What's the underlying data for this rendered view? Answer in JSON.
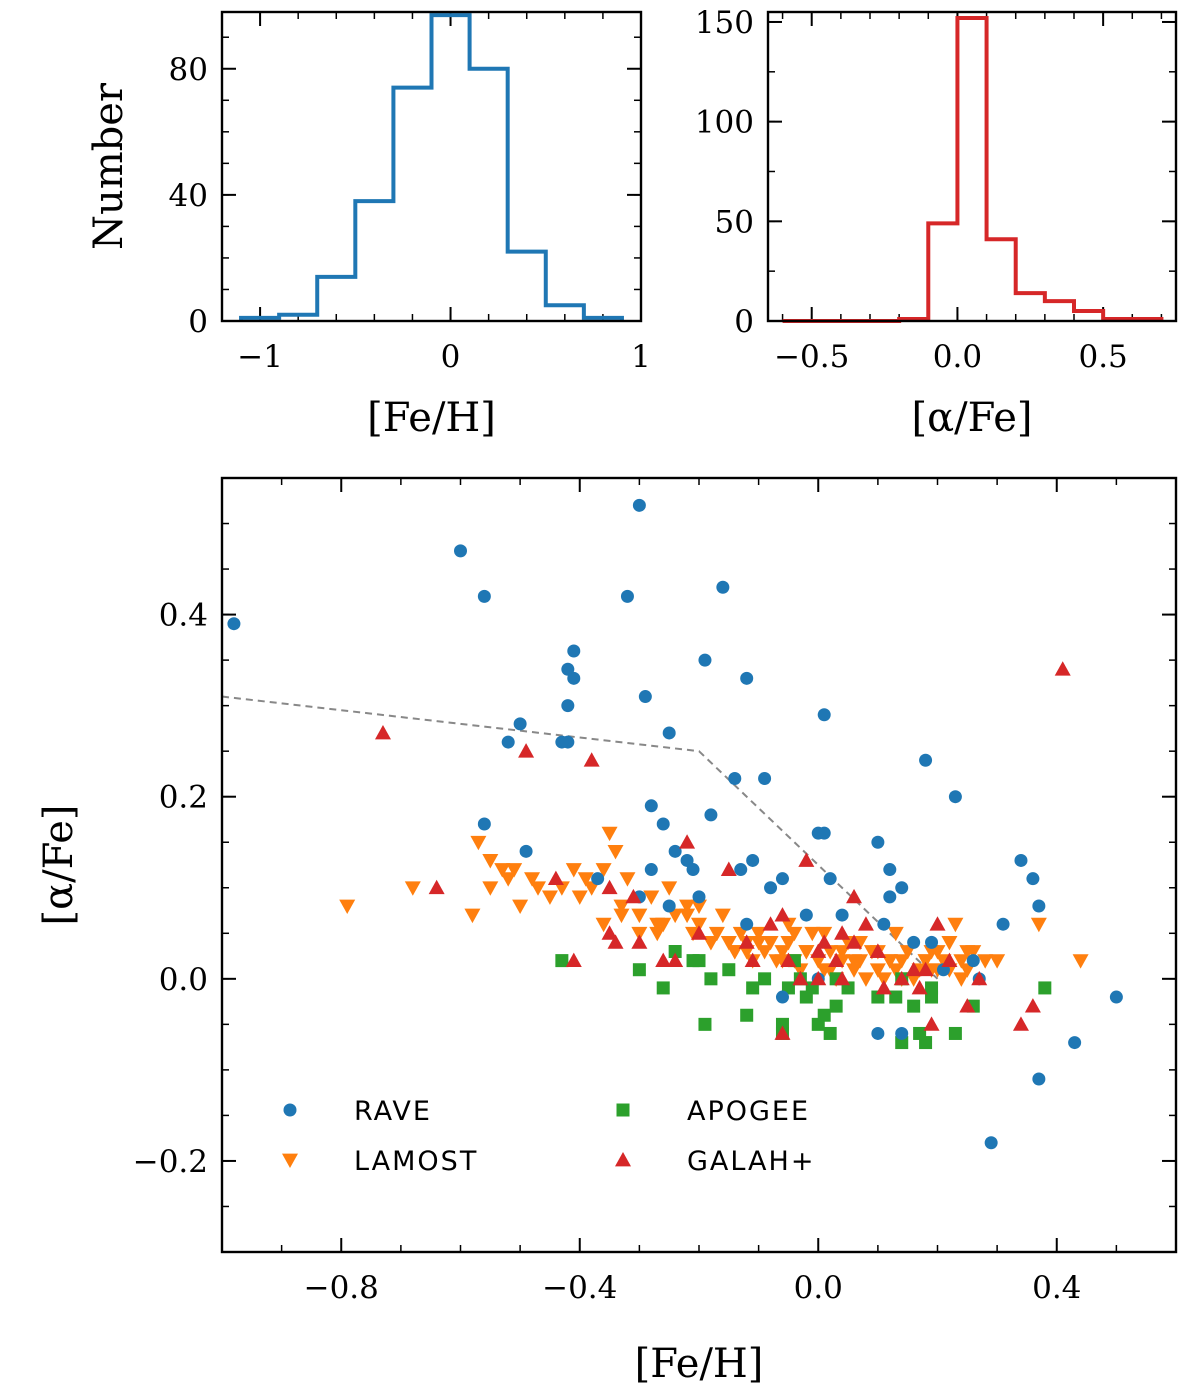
{
  "colors": {
    "rave": "#1f77b4",
    "lamost": "#ff7f0e",
    "apogee": "#2ca02c",
    "galah": "#d62728",
    "divider": "#888888"
  },
  "chart_data": [
    {
      "id": "feh_hist",
      "type": "histogram",
      "title": "",
      "xlabel": "[Fe/H]",
      "ylabel": "Number",
      "xlim": [
        -1.2,
        1.0
      ],
      "ylim": [
        0,
        98
      ],
      "xticks": [
        -1,
        0,
        1
      ],
      "xtick_labels": [
        "−1",
        "0",
        "1"
      ],
      "yticks": [
        0,
        40,
        80
      ],
      "ytick_labels": [
        "0",
        "40",
        "80"
      ],
      "color": "#1f77b4",
      "bin_edges": [
        -1.1,
        -0.9,
        -0.7,
        -0.5,
        -0.3,
        -0.1,
        0.1,
        0.3,
        0.5,
        0.7,
        0.9
      ],
      "counts": [
        1,
        2,
        14,
        38,
        74,
        97,
        80,
        22,
        5,
        1
      ]
    },
    {
      "id": "alpha_hist",
      "type": "histogram",
      "title": "",
      "xlabel": "[α/Fe]",
      "ylabel": "",
      "xlim": [
        -0.65,
        0.75
      ],
      "ylim": [
        0,
        155
      ],
      "xticks": [
        -0.5,
        0.0,
        0.5
      ],
      "xtick_labels": [
        "−0.5",
        "0.0",
        "0.5"
      ],
      "yticks": [
        0,
        50,
        100,
        150
      ],
      "ytick_labels": [
        "0",
        "50",
        "100",
        "150"
      ],
      "color": "#d62728",
      "bin_edges": [
        -0.6,
        -0.5,
        -0.4,
        -0.3,
        -0.2,
        -0.1,
        0.0,
        0.1,
        0.2,
        0.3,
        0.4,
        0.5,
        0.6,
        0.7
      ],
      "counts": [
        0,
        0,
        0,
        0,
        1,
        49,
        152,
        41,
        14,
        10,
        5,
        1,
        1
      ]
    },
    {
      "id": "scatter",
      "type": "scatter",
      "title": "",
      "xlabel": "[Fe/H]",
      "ylabel": "[α/Fe]",
      "xlim": [
        -1.0,
        0.6
      ],
      "ylim": [
        -0.3,
        0.55
      ],
      "xticks": [
        -0.8,
        -0.4,
        0.0,
        0.4
      ],
      "xtick_labels": [
        "−0.8",
        "−0.4",
        "0.0",
        "0.4"
      ],
      "yticks": [
        -0.2,
        0.0,
        0.2,
        0.4
      ],
      "ytick_labels": [
        "−0.2",
        "0.0",
        "0.2",
        "0.4"
      ],
      "legend_position": "lower-left",
      "divider_line": {
        "x": [
          -1.0,
          -0.2,
          0.2
        ],
        "y": [
          0.31,
          0.25,
          0.0
        ]
      },
      "series": [
        {
          "name": "RAVE",
          "marker": "circle",
          "color": "#1f77b4",
          "x": [
            -0.98,
            -0.6,
            -0.56,
            -0.3,
            -0.32,
            -0.29,
            -0.16,
            -0.19,
            -0.12,
            0.01,
            -0.42,
            -0.41,
            -0.41,
            -0.42,
            -0.42,
            -0.5,
            -0.52,
            -0.56,
            -0.49,
            -0.43,
            -0.25,
            -0.14,
            -0.09,
            -0.18,
            -0.28,
            -0.26,
            -0.28,
            -0.24,
            -0.22,
            -0.21,
            -0.2,
            -0.13,
            -0.11,
            -0.08,
            -0.06,
            -0.37,
            -0.3,
            -0.25,
            0.0,
            0.01,
            0.02,
            0.1,
            0.12,
            0.14,
            0.18,
            0.23,
            0.12,
            0.04,
            -0.02,
            0.11,
            0.16,
            0.19,
            0.26,
            0.31,
            0.34,
            0.36,
            0.37,
            0.43,
            0.37,
            0.29,
            0.5,
            0.27,
            0.21,
            0.14,
            0.1,
            0.0,
            -0.06,
            -0.12
          ],
          "y": [
            0.39,
            0.47,
            0.42,
            0.52,
            0.42,
            0.31,
            0.43,
            0.35,
            0.33,
            0.29,
            0.34,
            0.33,
            0.36,
            0.3,
            0.26,
            0.28,
            0.26,
            0.17,
            0.14,
            0.26,
            0.27,
            0.22,
            0.22,
            0.18,
            0.19,
            0.17,
            0.12,
            0.14,
            0.13,
            0.12,
            0.09,
            0.12,
            0.13,
            0.1,
            0.11,
            0.11,
            0.09,
            0.08,
            0.16,
            0.16,
            0.11,
            0.15,
            0.12,
            0.1,
            0.24,
            0.2,
            0.09,
            0.07,
            0.07,
            0.06,
            0.04,
            0.04,
            0.02,
            0.06,
            0.13,
            0.11,
            0.08,
            -0.07,
            -0.11,
            -0.18,
            -0.02,
            0.0,
            0.01,
            -0.06,
            -0.06,
            0.0,
            -0.02,
            0.06
          ]
        },
        {
          "name": "LAMOST",
          "marker": "triangle-down",
          "color": "#ff7f0e",
          "x": [
            -0.79,
            -0.68,
            -0.58,
            -0.57,
            -0.55,
            -0.53,
            -0.52,
            -0.51,
            -0.5,
            -0.48,
            -0.45,
            -0.43,
            -0.41,
            -0.39,
            -0.38,
            -0.36,
            -0.35,
            -0.33,
            -0.32,
            -0.3,
            -0.28,
            -0.27,
            -0.25,
            -0.24,
            -0.22,
            -0.21,
            -0.2,
            -0.18,
            -0.17,
            -0.16,
            -0.15,
            -0.14,
            -0.13,
            -0.12,
            -0.11,
            -0.1,
            -0.09,
            -0.08,
            -0.07,
            -0.06,
            -0.05,
            -0.04,
            -0.03,
            -0.02,
            -0.01,
            0.0,
            0.01,
            0.02,
            0.03,
            0.04,
            0.05,
            0.06,
            0.07,
            0.08,
            0.09,
            0.1,
            0.11,
            0.12,
            0.13,
            0.14,
            0.15,
            0.16,
            0.17,
            0.18,
            0.19,
            0.2,
            0.21,
            0.22,
            0.23,
            0.24,
            0.25,
            0.26,
            0.28,
            0.3,
            0.37,
            0.44,
            -0.34,
            -0.36,
            -0.3,
            -0.26,
            -0.22,
            -0.18,
            -0.14,
            -0.1,
            -0.06,
            -0.02,
            0.02,
            0.06,
            0.1,
            0.14,
            0.18,
            0.22,
            -0.55,
            -0.47,
            -0.4,
            -0.33,
            -0.27,
            -0.2,
            -0.12,
            -0.04,
            0.04,
            0.12,
            0.2,
            0.24,
            -0.05,
            0.01,
            0.07,
            0.13,
            0.19,
            0.25
          ],
          "y": [
            0.08,
            0.1,
            0.07,
            0.15,
            0.1,
            0.12,
            0.11,
            0.12,
            0.08,
            0.11,
            0.09,
            0.1,
            0.12,
            0.11,
            0.1,
            0.12,
            0.16,
            0.08,
            0.11,
            0.07,
            0.09,
            0.06,
            0.1,
            0.07,
            0.08,
            0.05,
            0.08,
            0.04,
            0.05,
            0.07,
            0.04,
            0.03,
            0.05,
            0.04,
            0.02,
            0.05,
            0.03,
            0.04,
            0.02,
            0.03,
            0.04,
            0.02,
            0.01,
            0.03,
            0.05,
            0.02,
            0.01,
            0.03,
            0.0,
            0.02,
            0.04,
            0.01,
            0.02,
            0.0,
            0.03,
            0.01,
            0.0,
            0.02,
            0.01,
            0.02,
            0.03,
            0.0,
            0.01,
            0.02,
            0.01,
            0.03,
            0.02,
            0.04,
            0.06,
            0.02,
            0.01,
            0.03,
            0.02,
            0.02,
            0.06,
            0.02,
            0.14,
            0.06,
            0.05,
            0.06,
            0.07,
            0.04,
            0.03,
            0.04,
            0.02,
            0.03,
            0.01,
            0.02,
            0.03,
            0.0,
            0.02,
            0.01,
            0.13,
            0.1,
            0.09,
            0.07,
            0.05,
            0.06,
            0.03,
            0.05,
            0.03,
            0.02,
            0.01,
            0.0,
            0.06,
            0.05,
            0.04,
            0.05,
            0.03,
            0.03
          ]
        },
        {
          "name": "APOGEE",
          "marker": "square",
          "color": "#2ca02c",
          "x": [
            -0.43,
            -0.3,
            -0.26,
            -0.24,
            -0.21,
            -0.19,
            -0.18,
            -0.15,
            -0.12,
            -0.11,
            -0.09,
            -0.06,
            -0.05,
            -0.04,
            -0.03,
            -0.01,
            0.0,
            0.01,
            0.02,
            0.03,
            0.03,
            0.1,
            0.13,
            0.14,
            0.16,
            0.17,
            0.18,
            0.19,
            0.19,
            0.23,
            0.26,
            0.38,
            -0.2,
            -0.06,
            -0.02,
            0.05,
            0.14
          ],
          "y": [
            0.02,
            0.01,
            -0.01,
            0.03,
            0.02,
            -0.05,
            0.0,
            0.01,
            -0.04,
            -0.01,
            0.0,
            -0.05,
            -0.01,
            0.02,
            0.0,
            -0.01,
            -0.05,
            -0.04,
            -0.06,
            -0.03,
            0.0,
            -0.02,
            -0.02,
            -0.07,
            -0.03,
            -0.06,
            -0.07,
            -0.01,
            -0.02,
            -0.06,
            -0.03,
            -0.01,
            0.02,
            -0.06,
            -0.02,
            -0.01,
            0.0
          ]
        },
        {
          "name": "GALAH+",
          "marker": "triangle-up",
          "color": "#d62728",
          "x": [
            -0.73,
            -0.64,
            -0.49,
            -0.38,
            -0.44,
            -0.35,
            -0.35,
            -0.34,
            -0.3,
            -0.26,
            -0.24,
            -0.22,
            -0.2,
            -0.12,
            -0.11,
            -0.06,
            -0.05,
            -0.03,
            -0.02,
            0.0,
            0.01,
            0.03,
            0.04,
            0.06,
            0.08,
            0.1,
            0.11,
            0.14,
            0.16,
            0.17,
            0.19,
            0.2,
            0.22,
            0.25,
            0.27,
            0.34,
            0.36,
            0.41,
            -0.41,
            -0.06,
            0.0,
            0.04,
            0.18,
            -0.31,
            -0.15,
            -0.08,
            0.06,
            0.1
          ],
          "y": [
            0.27,
            0.1,
            0.25,
            0.24,
            0.11,
            0.1,
            0.05,
            0.04,
            0.04,
            0.02,
            0.02,
            0.15,
            0.05,
            0.04,
            0.02,
            0.07,
            0.02,
            0.0,
            0.13,
            0.03,
            0.04,
            0.02,
            0.0,
            0.09,
            0.06,
            0.03,
            -0.01,
            0.0,
            0.01,
            -0.01,
            -0.05,
            0.06,
            0.02,
            -0.03,
            0.0,
            -0.05,
            -0.03,
            0.34,
            0.02,
            -0.06,
            0.0,
            0.05,
            0.01,
            0.09,
            0.12,
            0.06,
            0.04,
            0.03
          ]
        }
      ]
    }
  ]
}
